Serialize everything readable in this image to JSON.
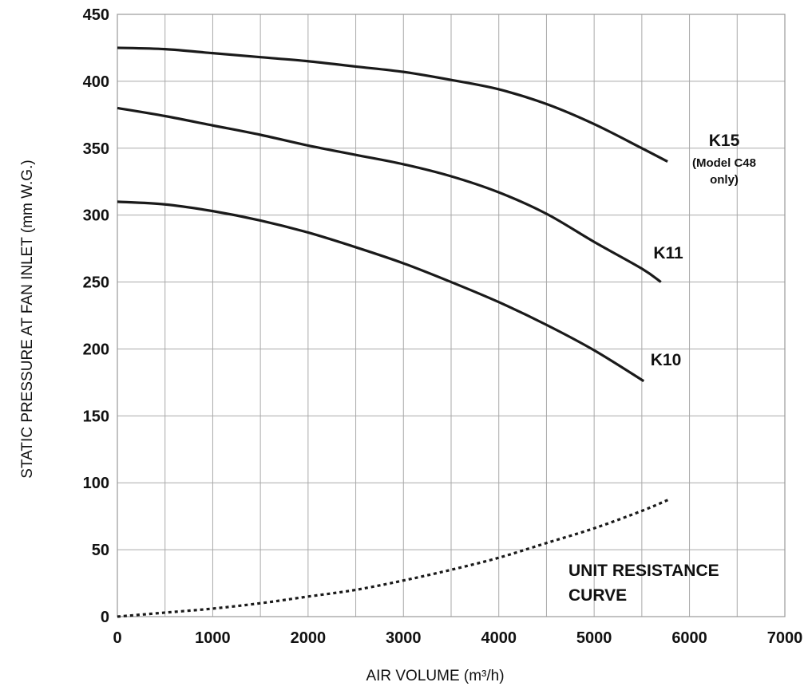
{
  "chart_data": {
    "type": "line",
    "xlabel": "AIR VOLUME (m³/h)",
    "ylabel": "STATIC PRESSURE AT FAN INLET (mm W.G.)",
    "xlim": [
      0,
      7000
    ],
    "ylim": [
      0,
      450
    ],
    "x_ticks": [
      "0",
      "1000",
      "2000",
      "3000",
      "4000",
      "5000",
      "6000",
      "7000"
    ],
    "y_ticks": [
      "0",
      "50",
      "100",
      "150",
      "200",
      "250",
      "300",
      "350",
      "400",
      "450"
    ],
    "grid": true,
    "series": [
      {
        "name": "K15",
        "note_lines": [
          "(Model C48",
          "only)"
        ],
        "style": "solid",
        "color": "#1a1a1a",
        "points": [
          [
            0,
            425
          ],
          [
            500,
            424
          ],
          [
            1000,
            421
          ],
          [
            1500,
            418
          ],
          [
            2000,
            415
          ],
          [
            2500,
            411
          ],
          [
            3000,
            407
          ],
          [
            3500,
            401
          ],
          [
            4000,
            394
          ],
          [
            4500,
            383
          ],
          [
            5000,
            368
          ],
          [
            5500,
            350
          ],
          [
            5770,
            340
          ]
        ]
      },
      {
        "name": "K11",
        "style": "solid",
        "color": "#1a1a1a",
        "points": [
          [
            0,
            380
          ],
          [
            500,
            374
          ],
          [
            1000,
            367
          ],
          [
            1500,
            360
          ],
          [
            2000,
            352
          ],
          [
            2500,
            345
          ],
          [
            3000,
            338
          ],
          [
            3500,
            329
          ],
          [
            4000,
            317
          ],
          [
            4500,
            301
          ],
          [
            5000,
            280
          ],
          [
            5500,
            260
          ],
          [
            5700,
            250
          ]
        ]
      },
      {
        "name": "K10",
        "style": "solid",
        "color": "#1a1a1a",
        "points": [
          [
            0,
            310
          ],
          [
            500,
            308
          ],
          [
            1000,
            303
          ],
          [
            1500,
            296
          ],
          [
            2000,
            287
          ],
          [
            2500,
            276
          ],
          [
            3000,
            264
          ],
          [
            3500,
            250
          ],
          [
            4000,
            235
          ],
          [
            4500,
            218
          ],
          [
            5000,
            199
          ],
          [
            5520,
            176
          ]
        ]
      },
      {
        "name_lines": [
          "UNIT RESISTANCE",
          "CURVE"
        ],
        "style": "dotted",
        "color": "#1a1a1a",
        "points": [
          [
            0,
            0
          ],
          [
            500,
            3
          ],
          [
            1000,
            6
          ],
          [
            1500,
            10
          ],
          [
            2000,
            15
          ],
          [
            2500,
            20
          ],
          [
            3000,
            27
          ],
          [
            3500,
            35
          ],
          [
            4000,
            44
          ],
          [
            4500,
            55
          ],
          [
            5000,
            66
          ],
          [
            5500,
            79
          ],
          [
            5800,
            88
          ]
        ]
      }
    ]
  }
}
